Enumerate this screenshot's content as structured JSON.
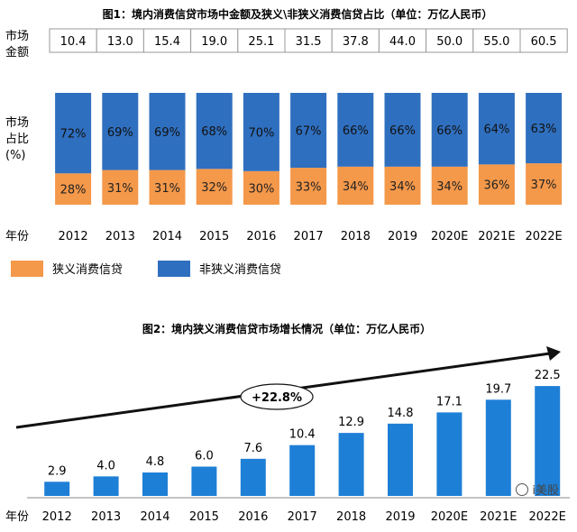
{
  "chart_data": [
    {
      "type": "stacked_bar",
      "title": "图1：境内消费信贷市场中金额及狭义\\非狭义消费信贷占比（单位：万亿人民币）",
      "row_labels": {
        "amount": [
          "市场",
          "金额"
        ],
        "share": [
          "市场",
          "占比",
          "(%)"
        ],
        "year": "年份"
      },
      "categories": [
        "2012",
        "2013",
        "2014",
        "2015",
        "2016",
        "2017",
        "2018",
        "2019",
        "2020E",
        "2021E",
        "2022E"
      ],
      "market_amount": [
        "10.4",
        "13.0",
        "15.4",
        "19.0",
        "25.1",
        "31.5",
        "37.8",
        "44.0",
        "50.0",
        "55.0",
        "60.5"
      ],
      "series": [
        {
          "name": "狭义消费信贷",
          "color": "#F4984A",
          "values": [
            28,
            31,
            31,
            32,
            30,
            33,
            34,
            34,
            34,
            36,
            37
          ]
        },
        {
          "name": "非狭义消费信贷",
          "color": "#2F6FBF",
          "values": [
            72,
            69,
            69,
            68,
            70,
            67,
            66,
            66,
            66,
            64,
            63
          ]
        }
      ],
      "ylim": [
        0,
        100
      ]
    },
    {
      "type": "bar",
      "title": "图2：境内狭义消费信贷市场增长情况（单位：万亿人民币）",
      "xlabel": "年份",
      "categories": [
        "2012",
        "2013",
        "2014",
        "2015",
        "2016",
        "2017",
        "2018",
        "2019",
        "2020E",
        "2021E",
        "2022E"
      ],
      "values": [
        2.9,
        4.0,
        4.8,
        6.0,
        7.6,
        10.4,
        12.9,
        14.8,
        17.1,
        19.7,
        22.5
      ],
      "value_labels": [
        "2.9",
        "4.0",
        "4.8",
        "6.0",
        "7.6",
        "10.4",
        "12.9",
        "14.8",
        "17.1",
        "19.7",
        "22.5"
      ],
      "color": "#1E7FD6",
      "ylim": [
        0,
        24
      ],
      "annotation": "+22.8%"
    }
  ],
  "watermark": "i美股"
}
